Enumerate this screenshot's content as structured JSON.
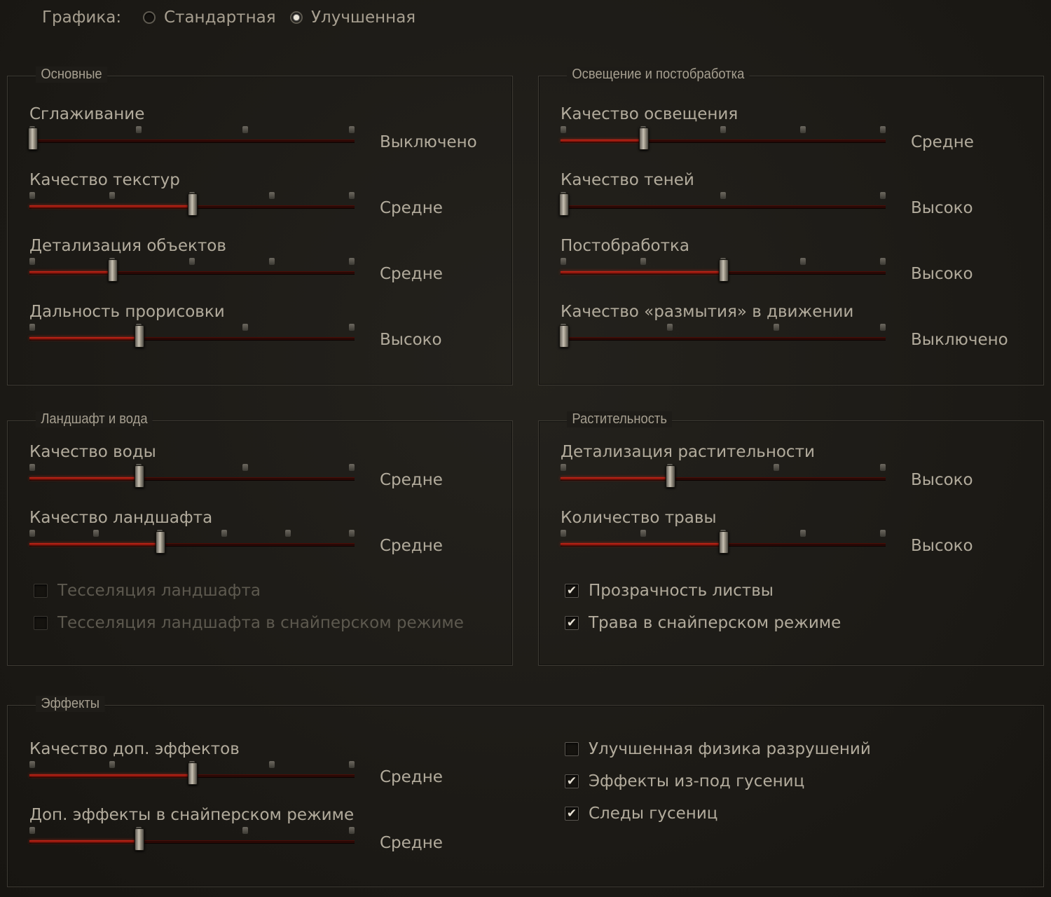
{
  "graphics": {
    "label": "Графика:",
    "options": [
      {
        "label": "Стандартная",
        "selected": false
      },
      {
        "label": "Улучшенная",
        "selected": true
      }
    ]
  },
  "panels": {
    "basic": {
      "title": "Основные",
      "settings": [
        {
          "label": "Сглаживание",
          "value": "Выключено",
          "steps": 4,
          "level": 0
        },
        {
          "label": "Качество текстур",
          "value": "Средне",
          "steps": 5,
          "level": 2
        },
        {
          "label": "Детализация объектов",
          "value": "Средне",
          "steps": 5,
          "level": 1
        },
        {
          "label": "Дальность прорисовки",
          "value": "Высоко",
          "steps": 4,
          "level": 1
        }
      ]
    },
    "lighting": {
      "title": "Освещение и постобработка",
      "settings": [
        {
          "label": "Качество освещения",
          "value": "Средне",
          "steps": 5,
          "level": 1
        },
        {
          "label": "Качество теней",
          "value": "Высоко",
          "steps": 3,
          "level": 0
        },
        {
          "label": "Постобработка",
          "value": "Высоко",
          "steps": 5,
          "level": 2
        },
        {
          "label": "Качество «размытия» в движении",
          "value": "Выключено",
          "steps": 4,
          "level": 0
        }
      ]
    },
    "landscape": {
      "title": "Ландшафт и вода",
      "settings": [
        {
          "label": "Качество воды",
          "value": "Средне",
          "steps": 4,
          "level": 1
        },
        {
          "label": "Качество ландшафта",
          "value": "Средне",
          "steps": 6,
          "level": 2
        }
      ],
      "checks": [
        {
          "label": "Тесселяция ландшафта",
          "checked": false,
          "disabled": true
        },
        {
          "label": "Тесселяция ландшафта в снайперском режиме",
          "checked": false,
          "disabled": true
        }
      ]
    },
    "vegetation": {
      "title": "Растительность",
      "settings": [
        {
          "label": "Детализация растительности",
          "value": "Высоко",
          "steps": 4,
          "level": 1
        },
        {
          "label": "Количество травы",
          "value": "Высоко",
          "steps": 5,
          "level": 2
        }
      ],
      "checks": [
        {
          "label": "Прозрачность листвы",
          "checked": true,
          "disabled": false
        },
        {
          "label": "Трава в снайперском режиме",
          "checked": true,
          "disabled": false
        }
      ]
    },
    "effects": {
      "title": "Эффекты",
      "settings": [
        {
          "label": "Качество доп. эффектов",
          "value": "Средне",
          "steps": 5,
          "level": 2
        },
        {
          "label": "Доп. эффекты в снайперском режиме",
          "value": "Средне",
          "steps": 4,
          "level": 1
        }
      ],
      "checks": [
        {
          "label": "Улучшенная физика разрушений",
          "checked": false,
          "disabled": false
        },
        {
          "label": "Эффекты из-под гусениц",
          "checked": true,
          "disabled": false
        },
        {
          "label": "Следы гусениц",
          "checked": true,
          "disabled": false
        }
      ]
    }
  },
  "check_glyph": "✔"
}
